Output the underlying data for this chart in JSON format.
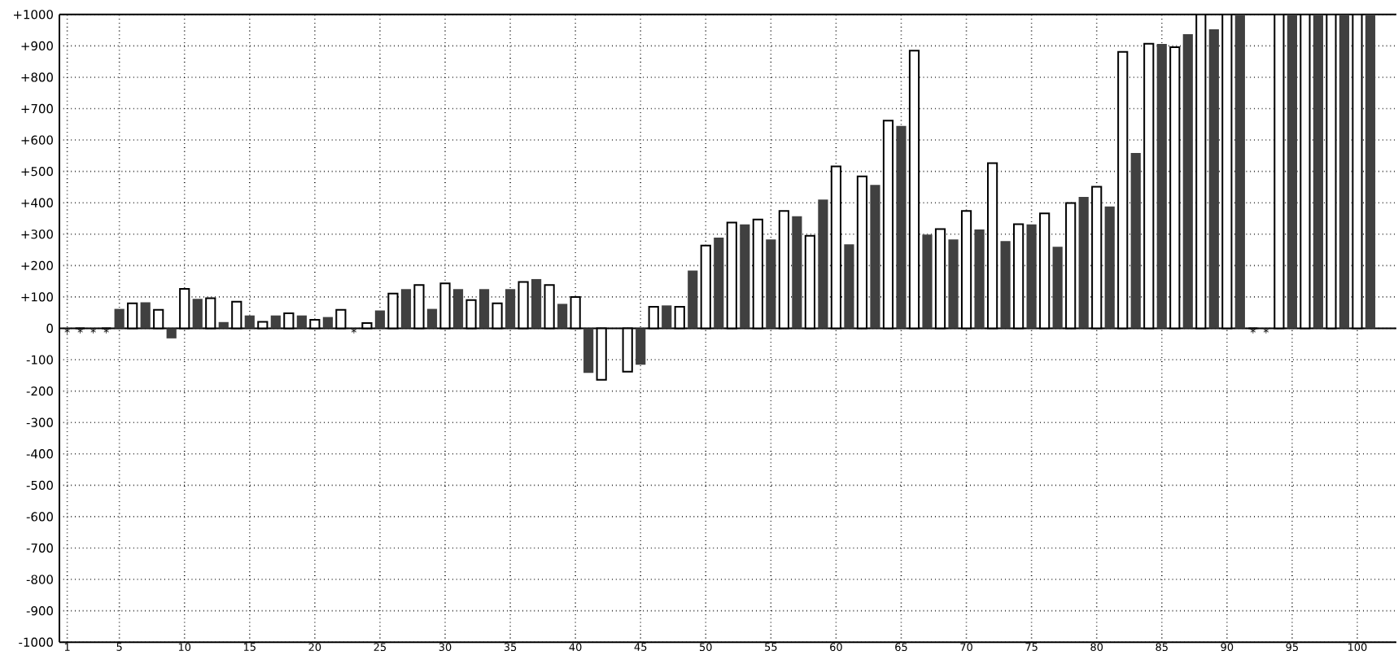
{
  "chart_data": {
    "type": "bar",
    "x": [
      1,
      2,
      3,
      4,
      5,
      6,
      7,
      8,
      9,
      10,
      11,
      12,
      13,
      14,
      15,
      16,
      17,
      18,
      19,
      20,
      21,
      22,
      23,
      24,
      25,
      26,
      27,
      28,
      29,
      30,
      31,
      32,
      33,
      34,
      35,
      36,
      37,
      38,
      39,
      40,
      41,
      42,
      43,
      44,
      45,
      46,
      47,
      48,
      49,
      50,
      51,
      52,
      53,
      54,
      55,
      56,
      57,
      58,
      59,
      60,
      61,
      62,
      63,
      64,
      65,
      66,
      67,
      68,
      69,
      70,
      71,
      72,
      73,
      74,
      75,
      76,
      77,
      78,
      79,
      80,
      81,
      82,
      83,
      84,
      85,
      86,
      87,
      88,
      89,
      90,
      91,
      92,
      93,
      94,
      95,
      96,
      97,
      98,
      99,
      100,
      101
    ],
    "values": [
      0,
      0,
      0,
      0,
      62,
      80,
      83,
      59,
      -32,
      126,
      94,
      96,
      20,
      85,
      41,
      21,
      41,
      48,
      41,
      27,
      36,
      59,
      0,
      17,
      57,
      111,
      125,
      138,
      62,
      143,
      125,
      90,
      125,
      80,
      125,
      148,
      157,
      138,
      78,
      100,
      -142,
      -164,
      null,
      -138,
      -116,
      69,
      73,
      69,
      184,
      264,
      289,
      337,
      331,
      347,
      283,
      374,
      357,
      295,
      410,
      516,
      268,
      484,
      457,
      662,
      645,
      885,
      299,
      316,
      283,
      374,
      315,
      526,
      278,
      332,
      331,
      366,
      260,
      399,
      419,
      451,
      388,
      881,
      559,
      907,
      906,
      896,
      937,
      1000,
      953,
      1000,
      1000,
      0,
      0,
      1000,
      1000,
      1000,
      1000,
      1000,
      1000,
      1000,
      1000
    ],
    "colors": [
      "#404040",
      "#ffffff",
      "#404040",
      "#ffffff",
      "#404040",
      "#ffffff",
      "#404040",
      "#ffffff",
      "#404040",
      "#ffffff",
      "#404040",
      "#ffffff",
      "#404040",
      "#ffffff",
      "#404040",
      "#ffffff",
      "#404040",
      "#ffffff",
      "#404040",
      "#ffffff",
      "#404040",
      "#ffffff",
      "#404040",
      "#ffffff",
      "#404040",
      "#ffffff",
      "#404040",
      "#ffffff",
      "#404040",
      "#ffffff",
      "#404040",
      "#ffffff",
      "#404040",
      "#ffffff",
      "#404040",
      "#ffffff",
      "#404040",
      "#ffffff",
      "#404040",
      "#ffffff",
      "#404040",
      "#ffffff",
      "#404040",
      "#ffffff",
      "#404040",
      "#ffffff",
      "#404040",
      "#ffffff",
      "#404040",
      "#ffffff",
      "#404040",
      "#ffffff",
      "#404040",
      "#ffffff",
      "#404040",
      "#ffffff",
      "#404040",
      "#ffffff",
      "#404040",
      "#ffffff",
      "#404040",
      "#ffffff",
      "#404040",
      "#ffffff",
      "#404040",
      "#ffffff",
      "#404040",
      "#ffffff",
      "#404040",
      "#ffffff",
      "#404040",
      "#ffffff",
      "#404040",
      "#ffffff",
      "#404040",
      "#ffffff",
      "#404040",
      "#ffffff",
      "#404040",
      "#ffffff",
      "#404040",
      "#ffffff",
      "#404040",
      "#ffffff",
      "#404040",
      "#ffffff",
      "#404040",
      "#ffffff",
      "#404040",
      "#ffffff",
      "#404040",
      "#ffffff",
      "#404040",
      "#ffffff",
      "#404040",
      "#ffffff",
      "#404040",
      "#ffffff",
      "#404040",
      "#ffffff",
      "#404040"
    ],
    "xlim": [
      0.4,
      103
    ],
    "xticks": [
      1,
      5,
      10,
      15,
      20,
      25,
      30,
      35,
      40,
      45,
      50,
      55,
      60,
      65,
      70,
      75,
      80,
      85,
      90,
      95,
      100
    ],
    "ylim": [
      -1000,
      1000
    ],
    "yticks": [
      {
        "value": -1000,
        "label": "-1000"
      },
      {
        "value": -900,
        "label": "-900"
      },
      {
        "value": -800,
        "label": "-800"
      },
      {
        "value": -700,
        "label": "-700"
      },
      {
        "value": -600,
        "label": "-600"
      },
      {
        "value": -500,
        "label": "-500"
      },
      {
        "value": -400,
        "label": "-400"
      },
      {
        "value": -300,
        "label": "-300"
      },
      {
        "value": -200,
        "label": "-200"
      },
      {
        "value": -100,
        "label": "-100"
      },
      0,
      {
        "value": 100,
        "label": "+100"
      },
      {
        "value": 200,
        "label": "+200"
      },
      {
        "value": 300,
        "label": "+300"
      },
      {
        "value": 400,
        "label": "+400"
      },
      {
        "value": 500,
        "label": "+500"
      },
      {
        "value": 600,
        "label": "+600"
      },
      {
        "value": 700,
        "label": "+700"
      },
      {
        "value": 800,
        "label": "+800"
      },
      {
        "value": 900,
        "label": "+900"
      },
      {
        "value": 1000,
        "label": "+1000"
      }
    ],
    "grid": true,
    "annotations": [
      {
        "text": "*",
        "x": 1,
        "y": 0
      },
      {
        "text": "*",
        "x": 2,
        "y": 0
      },
      {
        "text": "*",
        "x": 3,
        "y": 0
      },
      {
        "text": "*",
        "x": 4,
        "y": 0
      },
      {
        "text": "*",
        "x": 23,
        "y": 0
      },
      {
        "text": "*",
        "x": 92,
        "y": 0
      },
      {
        "text": "*",
        "x": 93,
        "y": 0
      }
    ]
  }
}
